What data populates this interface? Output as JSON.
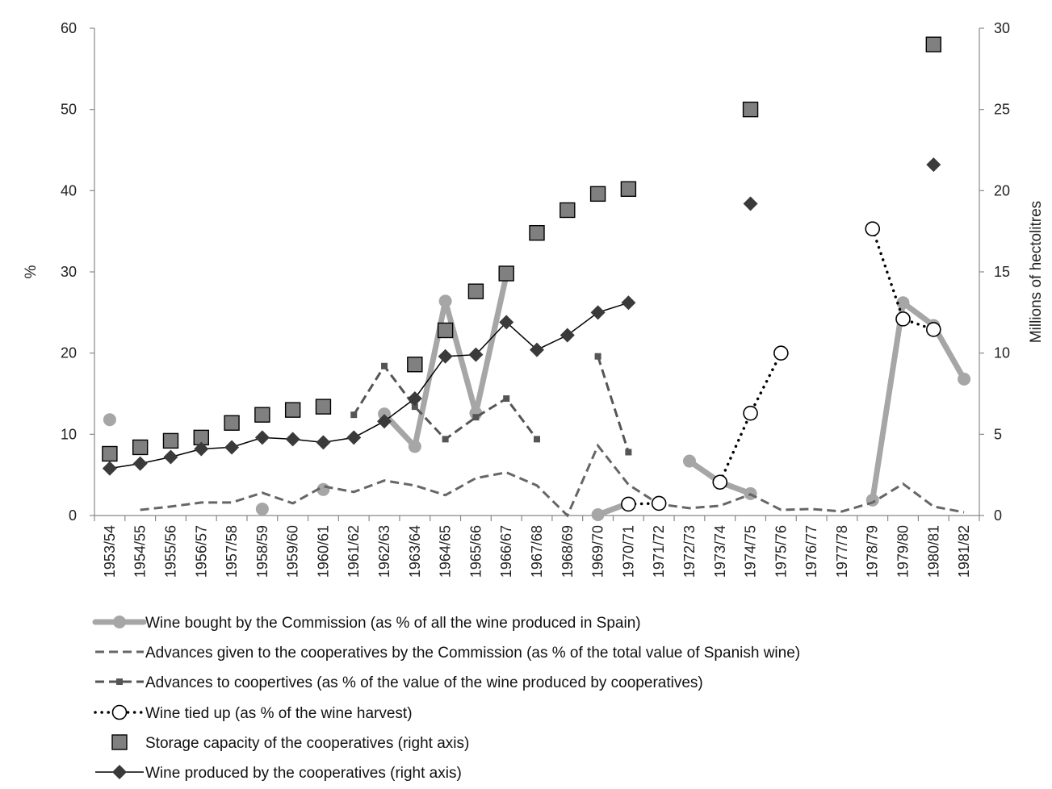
{
  "chart_data": {
    "type": "line",
    "categories": [
      "1953/54",
      "1954/55",
      "1955/56",
      "1956/57",
      "1957/58",
      "1958/59",
      "1959/60",
      "1960/61",
      "1961/62",
      "1962/63",
      "1963/64",
      "1964/65",
      "1965/66",
      "1966/67",
      "1967/68",
      "1968/69",
      "1969/70",
      "1970/71",
      "1971/72",
      "1972/73",
      "1973/74",
      "1974/75",
      "1975/76",
      "1976/77",
      "1977/78",
      "1978/79",
      "1979/80",
      "1980/81",
      "1981/82"
    ],
    "ylabel": "%",
    "y2label": "Millions of hectolitres",
    "ylim": [
      0,
      60
    ],
    "y2lim": [
      0,
      30
    ],
    "yticks": [
      0,
      10,
      20,
      30,
      40,
      50,
      60
    ],
    "y2ticks": [
      0,
      5,
      10,
      15,
      20,
      25,
      30
    ],
    "grid": false,
    "legend_position": "bottom",
    "series": [
      {
        "name": "Wine bought by the Commission (as % of all the wine produced in Spain)",
        "axis": "left",
        "style": "thick-gray-circle",
        "color": "#a6a6a6",
        "values": [
          11.8,
          null,
          null,
          null,
          null,
          0.8,
          null,
          3.2,
          null,
          12.5,
          8.5,
          26.4,
          12.6,
          29.6,
          null,
          null,
          0.1,
          1.5,
          null,
          6.7,
          4.1,
          2.7,
          null,
          null,
          null,
          1.9,
          26.2,
          23.4,
          16.8
        ]
      },
      {
        "name": "Advances given to the cooperatives by the Commission (as % of the total value of Spanish wine)",
        "axis": "left",
        "style": "dashed",
        "color": "#666666",
        "values": [
          null,
          0.7,
          1.1,
          1.6,
          1.6,
          2.8,
          1.5,
          3.6,
          2.9,
          4.3,
          3.7,
          2.5,
          4.6,
          5.3,
          3.7,
          0,
          8.6,
          3.8,
          1.4,
          0.9,
          1.2,
          2.6,
          0.7,
          0.8,
          0.5,
          1.6,
          3.9,
          1.1,
          0.4
        ]
      },
      {
        "name": "Advances to coopertives (as % of the value of  the wine produced by cooperatives)",
        "axis": "left",
        "style": "dashed-square",
        "color": "#555555",
        "values": [
          null,
          null,
          null,
          null,
          null,
          null,
          null,
          null,
          12.4,
          18.4,
          13.4,
          9.4,
          12.1,
          14.4,
          9.4,
          null,
          19.6,
          7.8,
          null,
          null,
          null,
          null,
          null,
          null,
          null,
          null,
          null,
          null,
          null
        ]
      },
      {
        "name": "Wine tied up (as % of the wine harvest)",
        "axis": "left",
        "style": "dotted-open-circle",
        "color": "#000000",
        "values": [
          null,
          null,
          null,
          null,
          null,
          null,
          null,
          null,
          null,
          null,
          null,
          null,
          null,
          null,
          null,
          null,
          null,
          1.4,
          1.5,
          null,
          4.1,
          12.6,
          20.0,
          null,
          null,
          35.3,
          24.2,
          22.9,
          null
        ]
      },
      {
        "name": "Storage capacity of the cooperatives (right axis)",
        "axis": "right",
        "style": "square-marker",
        "color": "#808080",
        "values": [
          3.8,
          4.2,
          4.6,
          4.8,
          5.7,
          6.2,
          6.5,
          6.7,
          null,
          null,
          9.3,
          11.4,
          13.8,
          14.9,
          17.4,
          18.8,
          19.8,
          20.1,
          null,
          null,
          null,
          25.0,
          null,
          null,
          null,
          null,
          null,
          29.0,
          null
        ]
      },
      {
        "name": "Wine produced by the cooperatives (right axis)",
        "axis": "right",
        "style": "solid-diamond",
        "color": "#3a3a3a",
        "values": [
          2.9,
          3.2,
          3.6,
          4.1,
          4.2,
          4.8,
          4.7,
          4.5,
          4.8,
          5.8,
          7.2,
          9.8,
          9.9,
          11.9,
          10.2,
          11.1,
          12.5,
          13.1,
          null,
          null,
          null,
          19.2,
          null,
          null,
          null,
          null,
          null,
          21.6,
          null
        ]
      }
    ]
  }
}
